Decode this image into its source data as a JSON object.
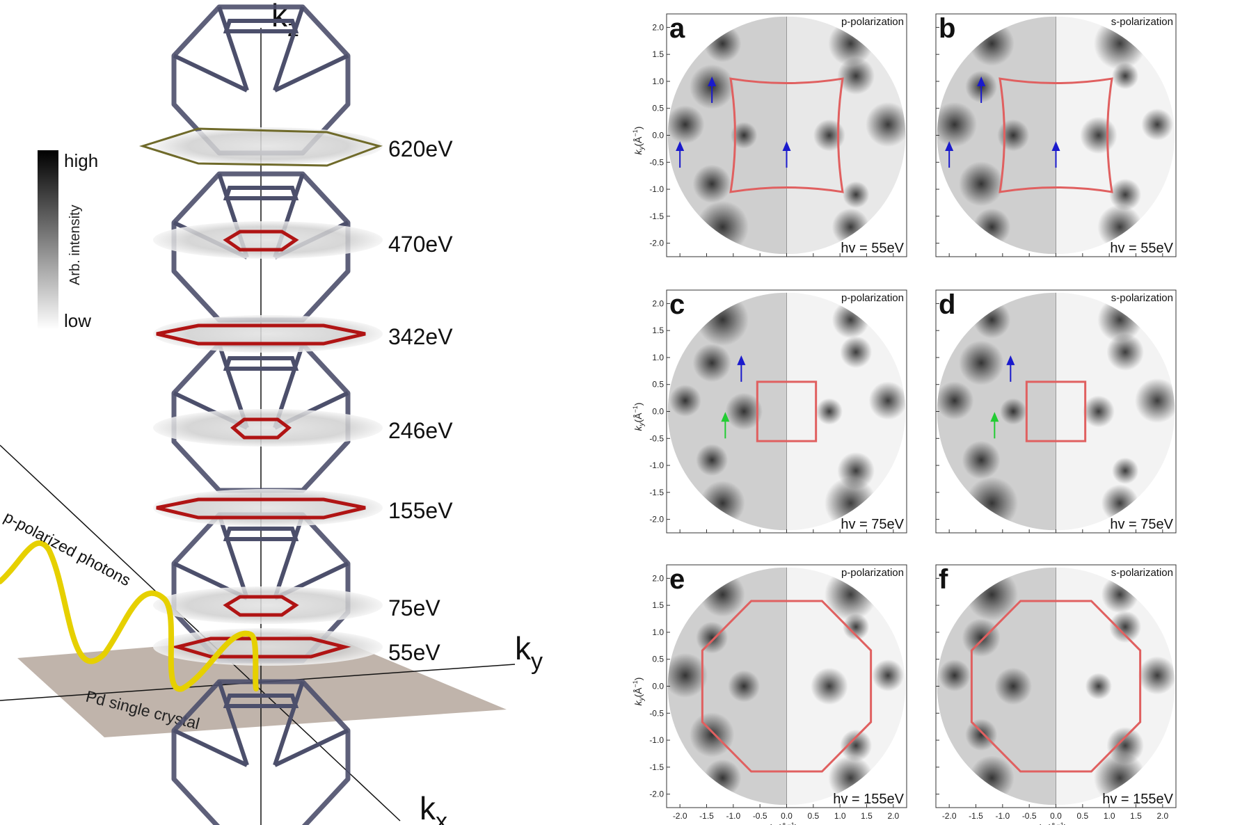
{
  "left": {
    "axis_kz": "k",
    "axis_kz_sub": "z",
    "axis_ky": "k",
    "axis_ky_sub": "y",
    "axis_kx": "k",
    "axis_kx_sub": "x",
    "colorbar": {
      "high": "high",
      "low": "low",
      "label": "Arb. intensity"
    },
    "energies": [
      "620eV",
      "470eV",
      "342eV",
      "246eV",
      "155eV",
      "75eV",
      "55eV"
    ],
    "photons_label": "p-polarized  photons",
    "crystal_label": "Pd single crystal",
    "colors": {
      "wire": "#4c4f6b",
      "fermi_red": "#b01414",
      "photon_yellow": "#e6d000",
      "crystal": "#b9aca2"
    }
  },
  "panels": [
    {
      "letter": "a",
      "polarization": "p-polarization",
      "hv": "hv = 55eV",
      "bz": "square-concave",
      "bz_scale": 1.05,
      "row": 0,
      "col": 0
    },
    {
      "letter": "b",
      "polarization": "s-polarization",
      "hv": "hv = 55eV",
      "bz": "square-concave",
      "bz_scale": 1.05,
      "row": 0,
      "col": 1
    },
    {
      "letter": "c",
      "polarization": "p-polarization",
      "hv": "hv = 75eV",
      "bz": "square",
      "bz_scale": 0.55,
      "row": 1,
      "col": 0
    },
    {
      "letter": "d",
      "polarization": "s-polarization",
      "hv": "hv = 75eV",
      "bz": "square",
      "bz_scale": 0.55,
      "row": 1,
      "col": 1
    },
    {
      "letter": "e",
      "polarization": "p-polarization",
      "hv": "hv = 155eV",
      "bz": "octagon",
      "bz_scale": 1.58,
      "row": 2,
      "col": 0
    },
    {
      "letter": "f",
      "polarization": "s-polarization",
      "hv": "hv = 155eV",
      "bz": "octagon",
      "bz_scale": 1.58,
      "row": 2,
      "col": 1
    }
  ],
  "axes": {
    "xlabel": "k",
    "xlabel_sub": "x",
    "xlabel_unit": "(Å",
    "ylabel": "k",
    "ylabel_sub": "y",
    "ylabel_unit": "(Å",
    "range": [
      -2.25,
      2.25
    ],
    "ticks": [
      "-2.0",
      "-1.5",
      "-1.0",
      "-0.5",
      "0.0",
      "0.5",
      "1.0",
      "1.5",
      "2.0"
    ],
    "yticks": [
      "2.0",
      "1.5",
      "1.0",
      "0.5",
      "0.0",
      "-0.5",
      "-1.0",
      "-1.5",
      "-2.0"
    ]
  },
  "colors": {
    "bz_line": "#e06060",
    "arrow_blue": "#1a1acc",
    "arrow_green": "#22cc33"
  }
}
